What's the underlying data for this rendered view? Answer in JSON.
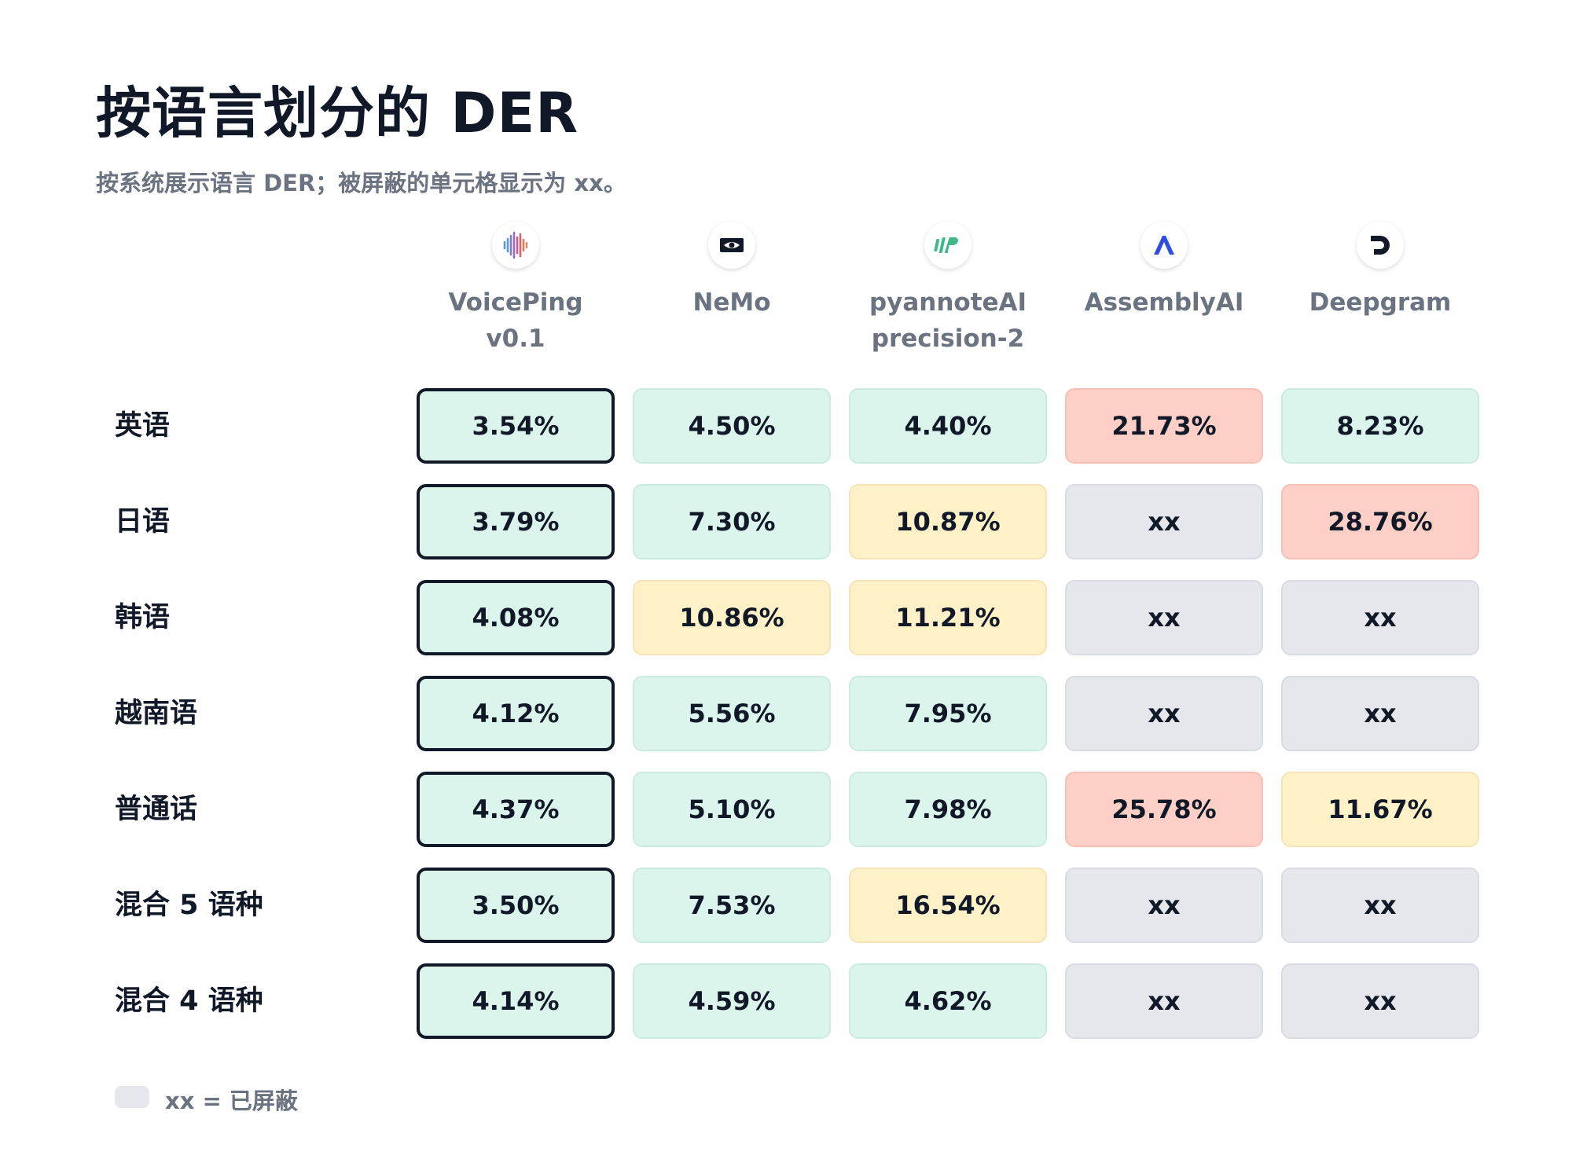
{
  "title": "按语言划分的 DER",
  "subtitle": "按系统展示语言 DER；被屏蔽的单元格显示为 xx。",
  "columns": [
    {
      "name": "VoicePing\nv0.1",
      "icon": "voiceping-logo-icon"
    },
    {
      "name": "NeMo",
      "icon": "nvidia-logo-icon"
    },
    {
      "name": "pyannoteAI\nprecision-2",
      "icon": "pyannote-logo-icon"
    },
    {
      "name": "AssemblyAI",
      "icon": "assemblyai-logo-icon"
    },
    {
      "name": "Deepgram",
      "icon": "deepgram-logo-icon"
    }
  ],
  "chart_data": {
    "type": "table",
    "rows": [
      "英语",
      "日语",
      "韩语",
      "越南语",
      "普通话",
      "混合 5 语种",
      "混合 4 语种"
    ],
    "columns": [
      "VoicePing v0.1",
      "NeMo",
      "pyannoteAI precision-2",
      "AssemblyAI",
      "Deepgram"
    ],
    "cells": [
      [
        "3.54%",
        "4.50%",
        "4.40%",
        "21.73%",
        "8.23%"
      ],
      [
        "3.79%",
        "7.30%",
        "10.87%",
        "xx",
        "28.76%"
      ],
      [
        "4.08%",
        "10.86%",
        "11.21%",
        "xx",
        "xx"
      ],
      [
        "4.12%",
        "5.56%",
        "7.95%",
        "xx",
        "xx"
      ],
      [
        "4.37%",
        "5.10%",
        "7.98%",
        "25.78%",
        "11.67%"
      ],
      [
        "3.50%",
        "7.53%",
        "16.54%",
        "xx",
        "xx"
      ],
      [
        "4.14%",
        "4.59%",
        "4.62%",
        "xx",
        "xx"
      ]
    ],
    "cell_levels": [
      [
        "good",
        "good",
        "good",
        "bad",
        "good"
      ],
      [
        "good",
        "good",
        "mid",
        "masked",
        "bad"
      ],
      [
        "good",
        "mid",
        "mid",
        "masked",
        "masked"
      ],
      [
        "good",
        "good",
        "good",
        "masked",
        "masked"
      ],
      [
        "good",
        "good",
        "good",
        "bad",
        "mid"
      ],
      [
        "good",
        "good",
        "mid",
        "masked",
        "masked"
      ],
      [
        "good",
        "good",
        "good",
        "masked",
        "masked"
      ]
    ],
    "highlighted_column": "VoicePing v0.1",
    "colors": {
      "good": "#dcf5ec",
      "mid": "#fef1c8",
      "bad": "#fecfc6",
      "masked": "#e5e7ec",
      "highlight_border": "#111827"
    }
  },
  "legend": {
    "text": "xx = 已屏蔽",
    "swatch_color": "#e5e7ec"
  }
}
